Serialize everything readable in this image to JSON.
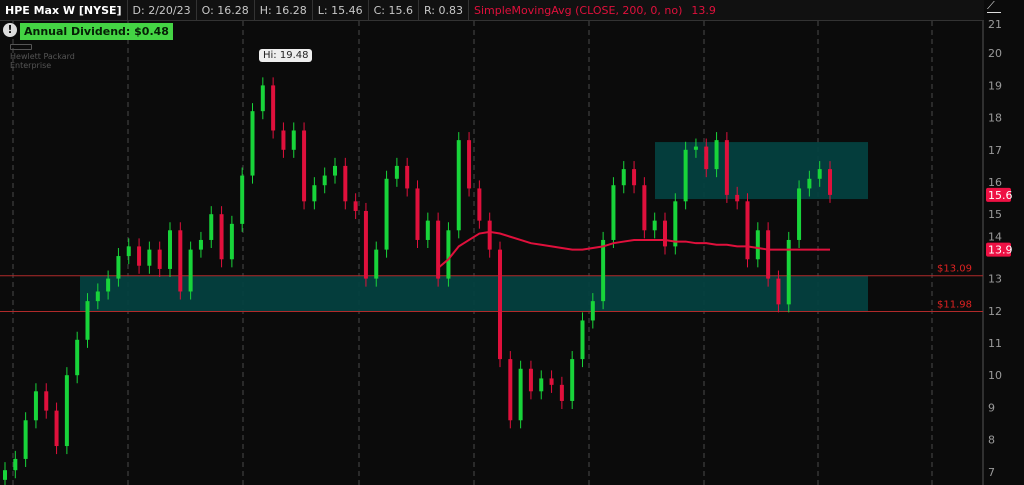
{
  "header": {
    "symbol": "HPE Max W [NYSE]",
    "date": "D: 2/20/23",
    "open": "O: 16.28",
    "high": "H: 16.28",
    "low": "L: 15.46",
    "close": "C: 15.6",
    "range": "R: 0.83",
    "study": "SimpleMovingAvg (CLOSE, 200, 0, no)",
    "study_value": "13.9"
  },
  "dividend_badge": "Annual Dividend: $0.48",
  "alert_icon": "!",
  "logo": "Hewlett Packard Enterprise",
  "hi_label": "Hi: 19.48",
  "colors": {
    "up": "#18d43a",
    "down": "#e0103c",
    "sma": "#e0103c",
    "zone": "#04403f",
    "level_line": "#b02a2a",
    "background": "#0b0b0b"
  },
  "chart_data": {
    "type": "candlestick",
    "ylim": [
      6.7,
      21
    ],
    "y_ticks": [
      "7",
      "8",
      "9",
      "10",
      "11",
      "12",
      "13",
      "14",
      "15",
      "16",
      "17",
      "18",
      "19",
      "20",
      "21"
    ],
    "grid": "vertical dashed",
    "closes": [
      7.05,
      7.4,
      8.6,
      9.5,
      8.9,
      7.8,
      10.0,
      11.1,
      12.3,
      12.6,
      13.0,
      13.7,
      14.0,
      13.4,
      13.9,
      13.3,
      14.5,
      12.6,
      13.9,
      14.2,
      15.0,
      13.6,
      14.7,
      16.2,
      18.2,
      19.0,
      17.6,
      17.0,
      17.6,
      15.4,
      15.9,
      16.2,
      16.5,
      15.4,
      15.1,
      13.0,
      13.9,
      16.1,
      16.5,
      15.8,
      14.2,
      14.8,
      13.0,
      14.5,
      17.3,
      15.8,
      14.8,
      13.9,
      10.5,
      8.6,
      10.2,
      9.5,
      9.9,
      9.7,
      9.2,
      10.5,
      11.7,
      12.3,
      14.2,
      15.9,
      16.4,
      15.9,
      14.5,
      14.8,
      14.0,
      15.4,
      17.0,
      17.1,
      16.4,
      17.3,
      15.6,
      15.4,
      13.6,
      14.5,
      13.0,
      12.2,
      14.2,
      15.8,
      16.1,
      16.4,
      15.6
    ],
    "high": 19.48,
    "last": {
      "value": "15.6"
    },
    "sma_200": {
      "label": "13.9",
      "values": [
        13.33,
        13.6,
        14.0,
        14.2,
        14.4,
        14.45,
        14.4,
        14.3,
        14.2,
        14.1,
        14.05,
        14.0,
        13.95,
        13.9,
        13.9,
        13.95,
        14.0,
        14.1,
        14.15,
        14.2,
        14.2,
        14.2,
        14.2,
        14.15,
        14.15,
        14.1,
        14.1,
        14.05,
        14.05,
        14.0,
        14.0,
        13.95,
        13.9,
        13.9,
        13.9,
        13.9,
        13.9,
        13.9,
        13.9
      ]
    },
    "zones": [
      {
        "name": "resistance",
        "top": 17.24,
        "bottom": 15.47
      },
      {
        "name": "support",
        "top": 13.09,
        "bottom": 11.98
      }
    ],
    "levels": [
      {
        "value": 13.09,
        "label": "$13.09"
      },
      {
        "value": 11.98,
        "label": "$11.98"
      }
    ]
  }
}
